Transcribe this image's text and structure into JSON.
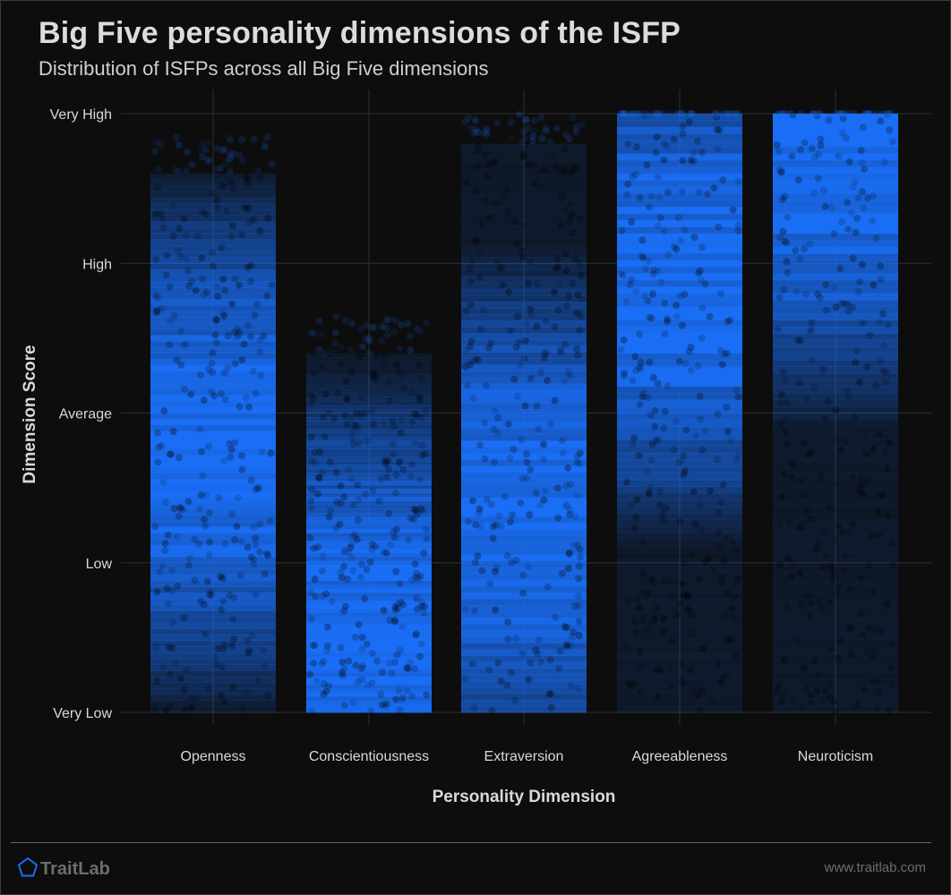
{
  "header": {
    "title": "Big Five personality dimensions of the ISFP",
    "subtitle": "Distribution of ISFPs across all Big Five dimensions"
  },
  "footer": {
    "brand": "TraitLab",
    "url": "www.traitlab.com"
  },
  "colors": {
    "background": "#0d0d0d",
    "point": "#1a6ef5",
    "grid": "#2a2a2a",
    "text": "#d9d9d9",
    "brand_icon": "#1a6ef5"
  },
  "chart_data": {
    "type": "scatter",
    "title": "Big Five personality dimensions of the ISFP",
    "subtitle": "Distribution of ISFPs across all Big Five dimensions",
    "xlabel": "Personality Dimension",
    "ylabel": "Dimension Score",
    "categories": [
      "Openness",
      "Conscientiousness",
      "Extraversion",
      "Agreeableness",
      "Neuroticism"
    ],
    "y_tick_labels": [
      "Very Low",
      "Low",
      "Average",
      "High",
      "Very High"
    ],
    "y_tick_values": [
      0,
      1,
      2,
      3,
      4
    ],
    "ylim": [
      0,
      4
    ],
    "grid": true,
    "jittered_points": true,
    "series": [
      {
        "category": "Openness",
        "y_min": 0.0,
        "y_max": 3.6,
        "density_peak": 1.8
      },
      {
        "category": "Conscientiousness",
        "y_min": 0.0,
        "y_max": 2.4,
        "density_peak": 0.5
      },
      {
        "category": "Extraversion",
        "y_min": 0.0,
        "y_max": 3.8,
        "density_peak": 1.3
      },
      {
        "category": "Agreeableness",
        "y_min": 0.0,
        "y_max": 4.0,
        "density_peak": 2.9
      },
      {
        "category": "Neuroticism",
        "y_min": 0.0,
        "y_max": 4.0,
        "density_peak": 3.7
      }
    ]
  }
}
